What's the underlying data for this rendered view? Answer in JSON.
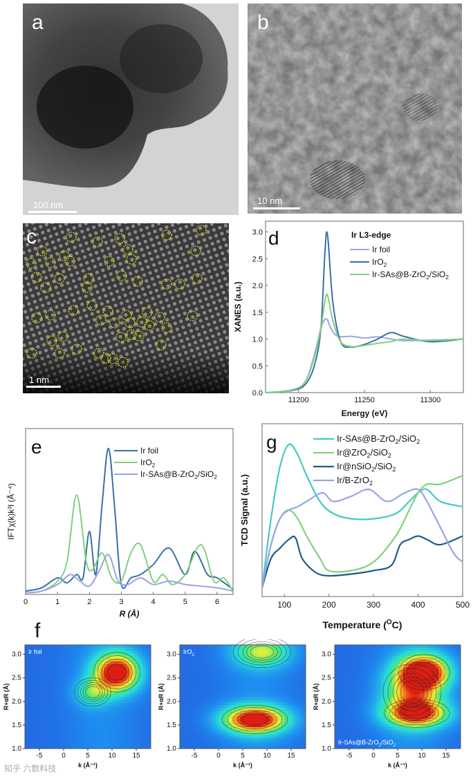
{
  "panels": {
    "a": {
      "letter": "a",
      "scale": "100 nm"
    },
    "b": {
      "letter": "b",
      "scale": "10 nm"
    },
    "c": {
      "letter": "c",
      "scale": "1 nm"
    },
    "f": {
      "letter": "f"
    }
  },
  "colors": {
    "steel": "#3a6fa5",
    "green": "#7fd27a",
    "lavender": "#9aa3e3",
    "cyan": "#3fcbc4",
    "navy": "#1f5c82",
    "frame": "#999999"
  },
  "chart_data": [
    {
      "id": "d",
      "type": "line",
      "letter": "d",
      "title": "Ir L3-edge",
      "xlabel": "Energy (eV)",
      "ylabel": "XANES (a.u.)",
      "xlim": [
        11175,
        11325
      ],
      "ylim": [
        0,
        3.2
      ],
      "xticks": [
        "11200",
        "11250",
        "11300"
      ],
      "yticks": [
        "0.0",
        "0.5",
        "1.0",
        "1.5",
        "2.0",
        "2.5",
        "3.0"
      ],
      "series": [
        {
          "name": "Ir foil",
          "color": "#9aa3e3",
          "x": [
            11175,
            11195,
            11205,
            11212,
            11217,
            11221,
            11225,
            11230,
            11240,
            11250,
            11260,
            11270,
            11280,
            11300,
            11325
          ],
          "y": [
            0,
            0.05,
            0.2,
            0.7,
            1.2,
            1.38,
            1.18,
            1.05,
            1.05,
            1.02,
            1.04,
            1.0,
            0.97,
            0.98,
            1.0
          ]
        },
        {
          "name": "IrO",
          "sub": "2",
          "color": "#3a6fa5",
          "x": [
            11175,
            11195,
            11205,
            11212,
            11217,
            11220,
            11222,
            11226,
            11232,
            11240,
            11250,
            11260,
            11270,
            11280,
            11300,
            11325
          ],
          "y": [
            0,
            0.04,
            0.15,
            0.5,
            1.2,
            2.6,
            2.95,
            1.7,
            0.95,
            0.85,
            0.9,
            1.0,
            1.12,
            1.05,
            0.95,
            1.0
          ]
        },
        {
          "name": "Ir-SAs@B-ZrO",
          "sub": "2",
          "tail": "/SiO",
          "tail_sub": "2",
          "color": "#7fd27a",
          "x": [
            11175,
            11195,
            11205,
            11212,
            11217,
            11220,
            11222,
            11226,
            11232,
            11240,
            11250,
            11260,
            11270,
            11280,
            11300,
            11325
          ],
          "y": [
            0,
            0.05,
            0.2,
            0.65,
            1.2,
            1.7,
            1.82,
            1.35,
            0.95,
            0.86,
            0.88,
            0.92,
            0.95,
            1.0,
            0.97,
            1.0
          ]
        }
      ]
    },
    {
      "id": "e",
      "type": "line",
      "letter": "e",
      "xlabel": "R (Å)",
      "ylabel": "IFTχ(k)k³l (Å⁻⁴)",
      "xlim": [
        0,
        6.5
      ],
      "ylim": [
        0,
        1.0
      ],
      "xticks": [
        "0",
        "1",
        "2",
        "3",
        "4",
        "5",
        "6"
      ],
      "series": [
        {
          "name": "Ir foil",
          "color": "#3a6fa5",
          "x": [
            0,
            0.5,
            1.0,
            1.3,
            1.6,
            1.8,
            2.0,
            2.2,
            2.4,
            2.6,
            2.8,
            3.0,
            3.3,
            3.6,
            4.0,
            4.5,
            5.0,
            5.3,
            5.7,
            6.0,
            6.5
          ],
          "y": [
            0.02,
            0.04,
            0.1,
            0.07,
            0.12,
            0.1,
            0.38,
            0.12,
            0.55,
            0.88,
            0.5,
            0.06,
            0.1,
            0.12,
            0.18,
            0.28,
            0.12,
            0.26,
            0.12,
            0.1,
            0.03
          ]
        },
        {
          "name": "IrO",
          "sub": "2",
          "color": "#7fd27a",
          "x": [
            0,
            0.5,
            1.0,
            1.3,
            1.6,
            1.9,
            2.1,
            2.4,
            2.7,
            3.0,
            3.3,
            3.6,
            4.0,
            4.3,
            4.6,
            5.0,
            5.5,
            5.9,
            6.2,
            6.5
          ],
          "y": [
            0.01,
            0.02,
            0.08,
            0.2,
            0.6,
            0.2,
            0.15,
            0.25,
            0.1,
            0.08,
            0.25,
            0.3,
            0.08,
            0.12,
            0.06,
            0.12,
            0.3,
            0.08,
            0.1,
            0.02
          ]
        },
        {
          "name": "Ir-SAs@B-ZrO",
          "sub": "2",
          "tail": "/SiO",
          "tail_sub": "2",
          "color": "#9aa3e3",
          "x": [
            0,
            0.5,
            1.0,
            1.4,
            1.7,
            2.0,
            2.3,
            2.6,
            2.9,
            3.2,
            3.6,
            4.0,
            4.5,
            5.0,
            5.5,
            6.0,
            6.5
          ],
          "y": [
            0.01,
            0.02,
            0.06,
            0.12,
            0.08,
            0.05,
            0.14,
            0.24,
            0.08,
            0.06,
            0.1,
            0.06,
            0.08,
            0.06,
            0.05,
            0.04,
            0.02
          ]
        }
      ]
    },
    {
      "id": "g",
      "type": "line",
      "letter": "g",
      "xlabel": "Temperature (°C)",
      "xlabel_main": "Temperature (",
      "xlabel_sup": "O",
      "xlabel_end": "C)",
      "ylabel": "TCD Signal (a.u.)",
      "xlim": [
        50,
        500
      ],
      "ylim": [
        0,
        1.0
      ],
      "xticks": [
        "100",
        "200",
        "300",
        "400",
        "500"
      ],
      "series": [
        {
          "name": "Ir-SAs@B-ZrO",
          "sub": "2",
          "tail": "/SiO",
          "tail_sub": "2",
          "color": "#3fcbc4",
          "x": [
            50,
            70,
            90,
            110,
            130,
            150,
            180,
            210,
            250,
            300,
            350,
            380,
            400,
            420,
            450,
            500
          ],
          "y": [
            0.05,
            0.45,
            0.75,
            0.88,
            0.82,
            0.7,
            0.55,
            0.48,
            0.45,
            0.45,
            0.48,
            0.55,
            0.6,
            0.62,
            0.55,
            0.52
          ]
        },
        {
          "name": "Ir@ZrO",
          "sub": "2",
          "tail": "/SiO",
          "tail_sub": "2",
          "color": "#7fd27a",
          "x": [
            50,
            70,
            90,
            110,
            130,
            150,
            180,
            200,
            250,
            300,
            350,
            380,
            400,
            420,
            450,
            500
          ],
          "y": [
            0.05,
            0.3,
            0.45,
            0.5,
            0.45,
            0.35,
            0.22,
            0.15,
            0.15,
            0.2,
            0.35,
            0.5,
            0.6,
            0.65,
            0.65,
            0.7
          ]
        },
        {
          "name": "Ir@nSiO",
          "sub": "2",
          "tail": "/SiO",
          "tail_sub": "2",
          "color": "#1f5c82",
          "x": [
            50,
            70,
            90,
            110,
            125,
            140,
            170,
            200,
            250,
            300,
            340,
            360,
            380,
            400,
            420,
            450,
            500
          ],
          "y": [
            0.05,
            0.22,
            0.28,
            0.33,
            0.34,
            0.22,
            0.14,
            0.12,
            0.13,
            0.15,
            0.18,
            0.3,
            0.33,
            0.35,
            0.33,
            0.3,
            0.35
          ]
        },
        {
          "name": "Ir/B-ZrO",
          "sub": "2",
          "color": "#9aa3e3",
          "x": [
            50,
            70,
            90,
            110,
            130,
            150,
            185,
            210,
            250,
            290,
            330,
            370,
            400,
            420,
            450,
            480,
            500
          ],
          "y": [
            0.05,
            0.3,
            0.45,
            0.5,
            0.52,
            0.55,
            0.6,
            0.55,
            0.58,
            0.62,
            0.55,
            0.6,
            0.62,
            0.55,
            0.4,
            0.25,
            0.2
          ]
        }
      ]
    },
    {
      "id": "f1",
      "type": "heatmap",
      "label": "Ir foil",
      "xlabel": "k (Å⁻¹)",
      "ylabel": "R+αR (Å)",
      "xticks": [
        "-5",
        "0",
        "5",
        "10",
        "15"
      ],
      "yticks": [
        "1.0",
        "1.5",
        "2.0",
        "2.5",
        "3.0"
      ],
      "xlim": [
        -8,
        18
      ],
      "ylim": [
        1.0,
        3.2
      ],
      "peaks": [
        {
          "k": 11,
          "r": 2.62,
          "amp": 1.0,
          "sk": 3.2,
          "sr": 0.28
        },
        {
          "k": 6,
          "r": 2.2,
          "amp": 0.35,
          "sk": 2.5,
          "sr": 0.2
        }
      ]
    },
    {
      "id": "f2",
      "type": "heatmap",
      "label": "IrO",
      "label_sub": "2",
      "xlabel": "k (Å⁻¹)",
      "ylabel": "R+αR (Å)",
      "xticks": [
        "-5",
        "0",
        "5",
        "10",
        "15"
      ],
      "yticks": [
        "1.0",
        "1.5",
        "2.0",
        "2.5",
        "3.0"
      ],
      "xlim": [
        -8,
        18
      ],
      "ylim": [
        1.0,
        3.2
      ],
      "peaks": [
        {
          "k": 7.5,
          "r": 1.62,
          "amp": 1.0,
          "sk": 4.5,
          "sr": 0.2
        },
        {
          "k": 9,
          "r": 3.05,
          "amp": 0.5,
          "sk": 4,
          "sr": 0.22
        }
      ]
    },
    {
      "id": "f3",
      "type": "heatmap",
      "label": "Ir-SAs@B-ZrO",
      "label_sub": "2",
      "label_tail": "/SiO",
      "label_tail_sub": "2",
      "xlabel": "k (Å⁻¹)",
      "ylabel": "R+αR (Å)",
      "xticks": [
        "-5",
        "0",
        "5",
        "10",
        "15"
      ],
      "yticks": [
        "1.0",
        "1.5",
        "2.0",
        "2.5",
        "3.0"
      ],
      "xlim": [
        -8,
        18
      ],
      "ylim": [
        1.0,
        3.2
      ],
      "peaks": [
        {
          "k": 10.5,
          "r": 2.62,
          "amp": 1.0,
          "sk": 3.5,
          "sr": 0.25
        },
        {
          "k": 9,
          "r": 1.75,
          "amp": 0.75,
          "sk": 4.5,
          "sr": 0.2
        },
        {
          "k": 8,
          "r": 2.2,
          "amp": 0.55,
          "sk": 4,
          "sr": 0.4
        }
      ]
    }
  ],
  "watermark": "知乎 六数科技"
}
